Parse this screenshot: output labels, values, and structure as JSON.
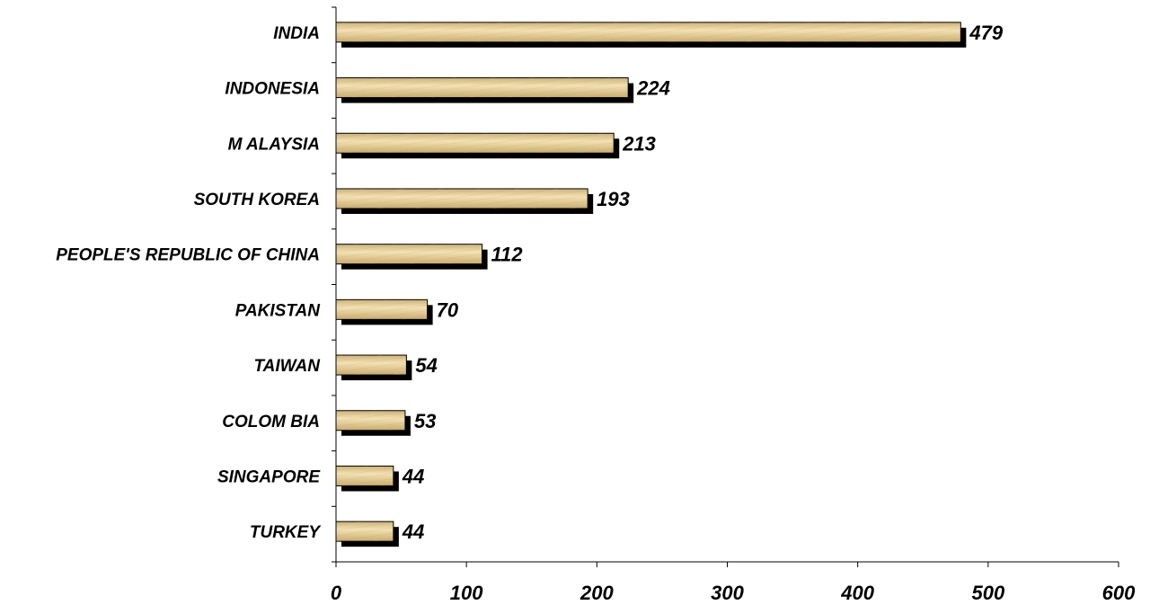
{
  "chart_data": {
    "type": "bar",
    "orientation": "horizontal",
    "title": "",
    "xlabel": "",
    "ylabel": "",
    "categories": [
      "INDIA",
      "INDONESIA",
      "M ALAYSIA",
      "SOUTH KOREA",
      "PEOPLE'S REPUBLIC OF CHINA",
      "PAKISTAN",
      "TAIWAN",
      "COLOM BIA",
      "SINGAPORE",
      "TURKEY"
    ],
    "values": [
      479,
      224,
      213,
      193,
      112,
      70,
      54,
      53,
      44,
      44
    ],
    "xlim": [
      0,
      600
    ],
    "xticks": [
      0,
      100,
      200,
      300,
      400,
      500,
      600
    ],
    "grid": false,
    "legend": "none",
    "data_labels": true,
    "colors": {
      "bar_fill_light": "#f3e2b4",
      "bar_fill_dark": "#cdb176",
      "bar_outline": "#000000",
      "shadow": "#000000"
    }
  }
}
